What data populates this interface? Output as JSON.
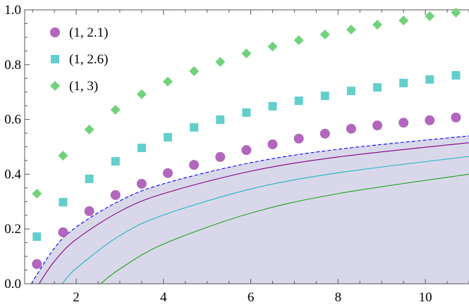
{
  "chart_data": {
    "type": "scatter",
    "title": "",
    "xlabel": "",
    "ylabel": "",
    "xlim": [
      0.82,
      11
    ],
    "ylim": [
      0,
      1.0
    ],
    "x_ticks": [
      "2",
      "4",
      "6",
      "8",
      "10"
    ],
    "y_ticks": [
      "0.0",
      "0.2",
      "0.4",
      "0.6",
      "0.8",
      "1.0"
    ],
    "grid": false,
    "legend_placement": "top-left",
    "x": [
      1.1,
      1.7,
      2.3,
      2.9,
      3.5,
      4.1,
      4.7,
      5.3,
      5.9,
      6.5,
      7.1,
      7.7,
      8.3,
      8.9,
      9.5,
      10.1,
      10.7
    ],
    "series": [
      {
        "name": "(1, 2.1)",
        "marker": "circle",
        "color": "#b366bd",
        "values": [
          0.072,
          0.188,
          0.265,
          0.324,
          0.365,
          0.404,
          0.434,
          0.463,
          0.488,
          0.509,
          0.53,
          0.548,
          0.566,
          0.578,
          0.588,
          0.597,
          0.607
        ]
      },
      {
        "name": "(1, 2.6)",
        "marker": "square",
        "color": "#62cfcc",
        "values": [
          0.172,
          0.298,
          0.383,
          0.447,
          0.496,
          0.535,
          0.571,
          0.599,
          0.625,
          0.648,
          0.668,
          0.686,
          0.704,
          0.717,
          0.733,
          0.746,
          0.761
        ]
      },
      {
        "name": "(1, 3)",
        "marker": "diamond",
        "color": "#72d27c",
        "values": [
          0.329,
          0.468,
          0.563,
          0.635,
          0.692,
          0.738,
          0.776,
          0.81,
          0.841,
          0.866,
          0.889,
          0.91,
          0.928,
          0.946,
          0.961,
          0.977,
          0.99
        ]
      }
    ],
    "curves": [
      {
        "style": "dashed",
        "color": "#0000ff",
        "filled": true,
        "fill": "#d9d8ea",
        "x": [
          0.97,
          1.5,
          2,
          3,
          4,
          6,
          8,
          11
        ],
        "y": [
          0,
          0.13,
          0.207,
          0.303,
          0.365,
          0.442,
          0.491,
          0.54
        ]
      },
      {
        "style": "solid",
        "color": "#800080",
        "x": [
          1.15,
          1.5,
          2,
          3,
          4,
          6,
          8,
          11
        ],
        "y": [
          0,
          0.082,
          0.162,
          0.264,
          0.329,
          0.411,
          0.463,
          0.515
        ]
      },
      {
        "style": "solid",
        "color": "#1fb3c4",
        "x": [
          1.68,
          2,
          3,
          4,
          6,
          8,
          11
        ],
        "y": [
          0,
          0.056,
          0.176,
          0.251,
          0.346,
          0.405,
          0.465
        ]
      },
      {
        "style": "solid",
        "color": "#1ea21e",
        "x": [
          2.56,
          3,
          4,
          6,
          8,
          11
        ],
        "y": [
          0,
          0.054,
          0.145,
          0.258,
          0.329,
          0.4
        ]
      }
    ]
  }
}
